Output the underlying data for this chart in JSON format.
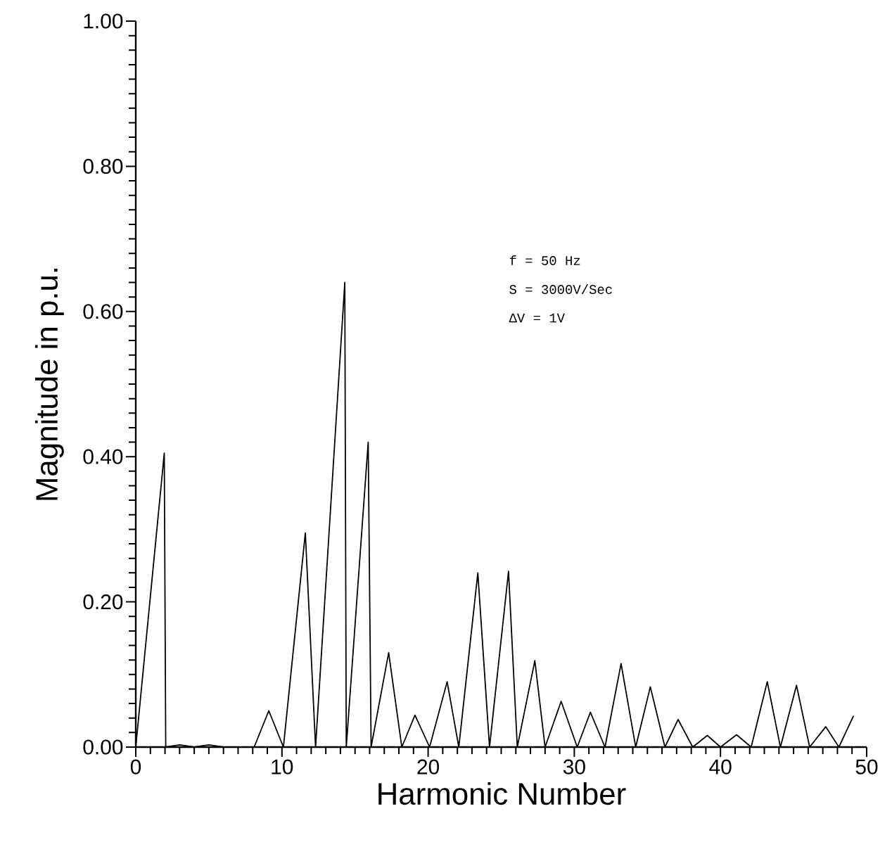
{
  "chart_data": {
    "type": "line",
    "xlabel": "Harmonic Number",
    "ylabel": "Magnitude in p.u.",
    "x": [
      0,
      1.95,
      2.05,
      3,
      4,
      5,
      6,
      8.1,
      9.1,
      10.1,
      11.6,
      12.3,
      14.3,
      14.4,
      15.9,
      16.1,
      17.3,
      18.2,
      19.1,
      20.1,
      21.3,
      22.1,
      23.4,
      24.2,
      25.5,
      26.1,
      27.3,
      28.0,
      29.1,
      30.2,
      31.1,
      32.1,
      33.2,
      34.2,
      35.2,
      36.2,
      37.1,
      38.1,
      39.1,
      40.0,
      41.1,
      42.1,
      43.2,
      44.1,
      45.2,
      46.1,
      47.2,
      48.1,
      49.1
    ],
    "series": [
      {
        "color": "#000000",
        "values": [
          0,
          0.405,
          0,
          0.003,
          0,
          0.003,
          0,
          0,
          0.05,
          0,
          0.295,
          0,
          0.64,
          0,
          0.42,
          0,
          0.13,
          0,
          0.044,
          0,
          0.09,
          0,
          0.24,
          0,
          0.242,
          0,
          0.119,
          0,
          0.063,
          0,
          0.048,
          0,
          0.115,
          0,
          0.083,
          0,
          0.038,
          0,
          0.016,
          0,
          0.017,
          0,
          0.09,
          0,
          0.085,
          0,
          0.028,
          0,
          0.043
        ]
      }
    ],
    "xlim": [
      0,
      50
    ],
    "ylim": [
      0,
      1
    ],
    "xticks": [
      0,
      10,
      20,
      30,
      40,
      50
    ],
    "yticks": [
      {
        "value": 0,
        "label": "0.00"
      },
      {
        "value": 0.2,
        "label": "0.20"
      },
      {
        "value": 0.4,
        "label": "0.40"
      },
      {
        "value": 0.6,
        "label": "0.60"
      },
      {
        "value": 0.8,
        "label": "0.80"
      },
      {
        "value": 1,
        "label": "1.00"
      }
    ],
    "annotations": [
      "f  =  50 Hz",
      "S  =  3000V/Sec",
      "ΔV =  1V"
    ],
    "grid": false,
    "marker": "none",
    "line_style": "solid"
  }
}
